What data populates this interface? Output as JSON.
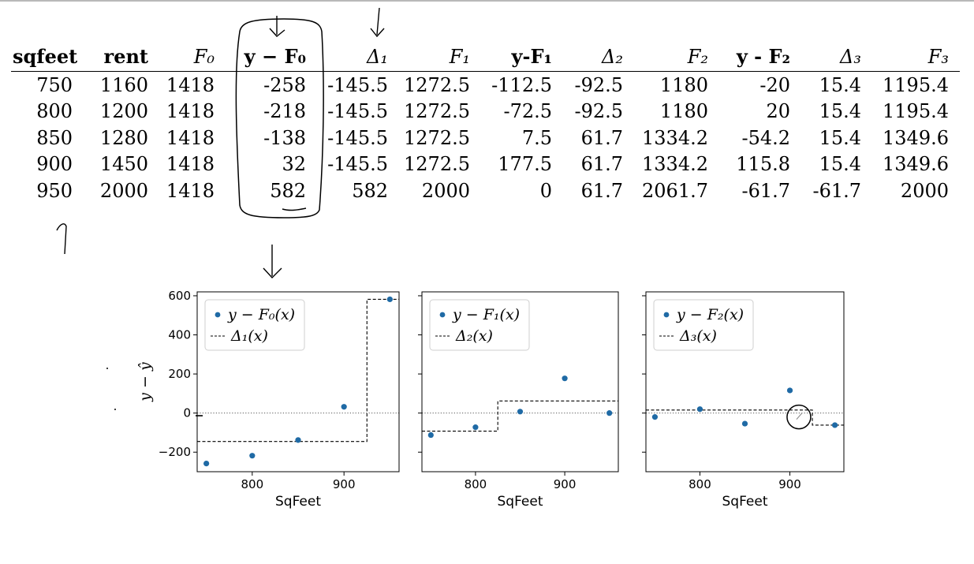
{
  "table": {
    "headers": [
      "sqfeet",
      "rent",
      "F₀",
      "y − F₀",
      "Δ₁",
      "F₁",
      "y-F₁",
      "Δ₂",
      "F₂",
      "y - F₂",
      "Δ₃",
      "F₃"
    ],
    "rows": [
      [
        "750",
        "1160",
        "1418",
        "-258",
        "-145.5",
        "1272.5",
        "-112.5",
        "-92.5",
        "1180",
        "-20",
        "15.4",
        "1195.4"
      ],
      [
        "800",
        "1200",
        "1418",
        "-218",
        "-145.5",
        "1272.5",
        "-72.5",
        "-92.5",
        "1180",
        "20",
        "15.4",
        "1195.4"
      ],
      [
        "850",
        "1280",
        "1418",
        "-138",
        "-145.5",
        "1272.5",
        "7.5",
        "61.7",
        "1334.2",
        "-54.2",
        "15.4",
        "1349.6"
      ],
      [
        "900",
        "1450",
        "1418",
        "32",
        "-145.5",
        "1272.5",
        "177.5",
        "61.7",
        "1334.2",
        "115.8",
        "15.4",
        "1349.6"
      ],
      [
        "950",
        "2000",
        "1418",
        "582",
        "582",
        "2000",
        "0",
        "61.7",
        "2061.7",
        "-61.7",
        "-61.7",
        "2000"
      ]
    ]
  },
  "colors": {
    "points": "#1f6aa5",
    "step": "#000000",
    "annotation": "#000000"
  },
  "chart_data": [
    {
      "type": "scatter",
      "x": [
        750,
        800,
        850,
        900,
        950
      ],
      "series": [
        {
          "name": "y − F₀(x)",
          "values": [
            -258,
            -218,
            -138,
            32,
            582
          ]
        },
        {
          "name": "Δ₁(x)",
          "style": "dashed-step",
          "values": [
            -145.5,
            -145.5,
            -145.5,
            -145.5,
            582
          ],
          "split": 925
        }
      ],
      "xlabel": "SqFeet",
      "ylabel": "y − ŷ",
      "xlim": [
        740,
        960
      ],
      "ylim": [
        -300,
        620
      ],
      "xticks": [
        "800",
        "900"
      ],
      "yticks": [
        "−200",
        "0",
        "200",
        "400",
        "600"
      ],
      "legend": "top-left"
    },
    {
      "type": "scatter",
      "x": [
        750,
        800,
        850,
        900,
        950
      ],
      "series": [
        {
          "name": "y − F₁(x)",
          "values": [
            -112.5,
            -72.5,
            7.5,
            177.5,
            0
          ]
        },
        {
          "name": "Δ₂(x)",
          "style": "dashed-step",
          "values": [
            -92.5,
            -92.5,
            61.7,
            61.7,
            61.7
          ],
          "split": 825
        }
      ],
      "xlabel": "SqFeet",
      "xlim": [
        740,
        960
      ],
      "ylim": [
        -300,
        620
      ],
      "xticks": [
        "800",
        "900"
      ],
      "legend": "top-left"
    },
    {
      "type": "scatter",
      "x": [
        750,
        800,
        850,
        900,
        950
      ],
      "series": [
        {
          "name": "y − F₂(x)",
          "values": [
            -20,
            20,
            -54.2,
            115.8,
            -61.7
          ]
        },
        {
          "name": "Δ₃(x)",
          "style": "dashed-step",
          "values": [
            15.4,
            15.4,
            15.4,
            15.4,
            -61.7
          ],
          "split": 925
        }
      ],
      "xlabel": "SqFeet",
      "xlim": [
        740,
        960
      ],
      "ylim": [
        -300,
        620
      ],
      "xticks": [
        "800",
        "900"
      ],
      "legend": "top-left"
    }
  ]
}
